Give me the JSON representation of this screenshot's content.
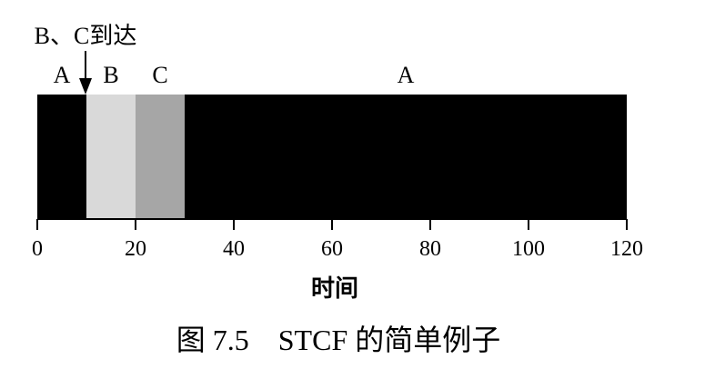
{
  "chart_data": {
    "type": "bar",
    "subtype": "gantt-timeline",
    "xlabel": "时间",
    "caption": "图 7.5　STCF 的简单例子",
    "xlim": [
      0,
      120
    ],
    "x_ticks": [
      0,
      20,
      40,
      60,
      80,
      100,
      120
    ],
    "x_tick_labels": [
      "0",
      "20",
      "40",
      "60",
      "80",
      "100",
      "120"
    ],
    "segments": [
      {
        "label": "A",
        "start": 0,
        "end": 10,
        "color": "#000000"
      },
      {
        "label": "B",
        "start": 10,
        "end": 20,
        "color": "#d9d9d9"
      },
      {
        "label": "C",
        "start": 20,
        "end": 30,
        "color": "#a6a6a6"
      },
      {
        "label": "A",
        "start": 30,
        "end": 120,
        "color": "#000000"
      }
    ],
    "annotations": [
      {
        "text": "B、C到达",
        "x": 10
      }
    ],
    "grid": false,
    "legend": "none"
  }
}
